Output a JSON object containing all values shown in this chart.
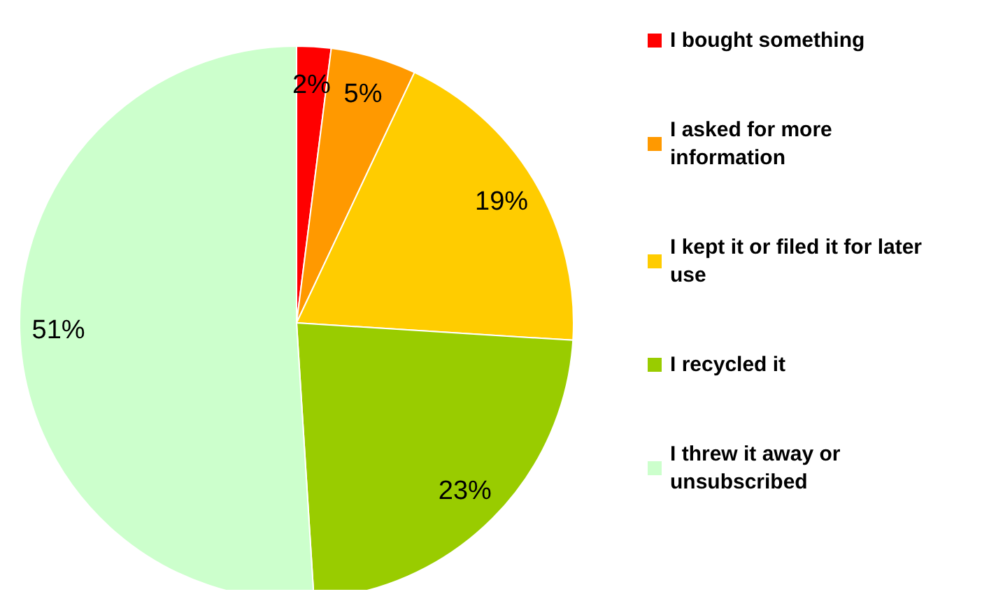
{
  "chart_data": {
    "type": "pie",
    "categories": [
      "I bought something",
      "I asked for more information",
      "I kept it or filed it for later use",
      "I recycled it",
      "I threw it away or unsubscribed"
    ],
    "values": [
      2,
      5,
      19,
      23,
      51
    ],
    "value_labels": [
      "2%",
      "5%",
      "19%",
      "23%",
      "51%"
    ],
    "colors": [
      "#ff0000",
      "#ff9900",
      "#ffcc00",
      "#99cc00",
      "#ccffcc"
    ],
    "legend": "right"
  }
}
